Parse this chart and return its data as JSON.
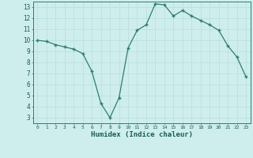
{
  "x": [
    0,
    1,
    2,
    3,
    4,
    5,
    6,
    7,
    8,
    9,
    10,
    11,
    12,
    13,
    14,
    15,
    16,
    17,
    18,
    19,
    20,
    21,
    22,
    23
  ],
  "y": [
    10.0,
    9.9,
    9.6,
    9.4,
    9.2,
    8.8,
    7.2,
    4.3,
    3.0,
    4.8,
    9.3,
    10.9,
    11.4,
    13.3,
    13.2,
    12.2,
    12.7,
    12.2,
    11.8,
    11.4,
    10.9,
    9.5,
    8.5,
    6.7
  ],
  "xlim": [
    -0.5,
    23.5
  ],
  "ylim": [
    2.5,
    13.5
  ],
  "yticks": [
    3,
    4,
    5,
    6,
    7,
    8,
    9,
    10,
    11,
    12,
    13
  ],
  "xticks": [
    0,
    1,
    2,
    3,
    4,
    5,
    6,
    7,
    8,
    9,
    10,
    11,
    12,
    13,
    14,
    15,
    16,
    17,
    18,
    19,
    20,
    21,
    22,
    23
  ],
  "xlabel": "Humidex (Indice chaleur)",
  "line_color": "#2e7d6e",
  "marker_color": "#2e7d6e",
  "bg_color": "#ceeeed",
  "grid_color": "#b8dedd",
  "tick_label_color": "#1a5c55",
  "xlabel_color": "#1a5c55",
  "spine_color": "#2e7d6e",
  "figsize": [
    3.2,
    2.0
  ],
  "dpi": 100
}
